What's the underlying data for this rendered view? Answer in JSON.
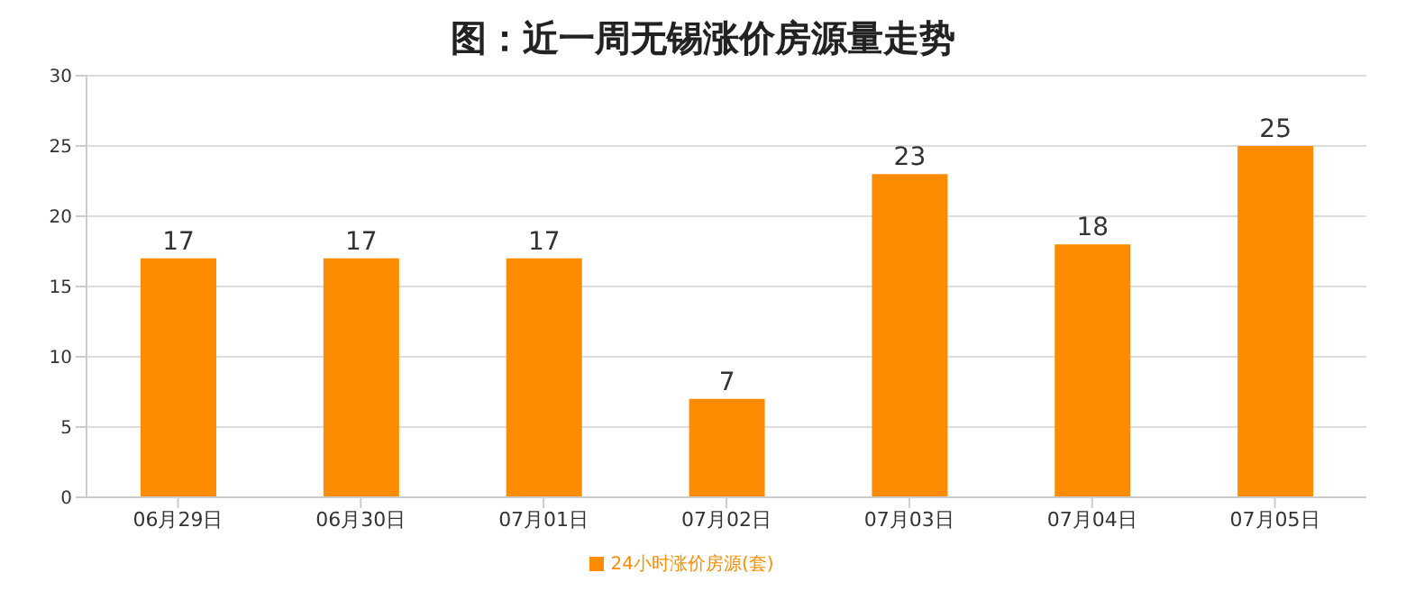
{
  "chart_data": {
    "type": "bar",
    "title": "图：近一周无锡涨价房源量走势",
    "categories": [
      "06月29日",
      "06月30日",
      "07月01日",
      "07月02日",
      "07月03日",
      "07月04日",
      "07月05日"
    ],
    "series": [
      {
        "name": "24小时涨价房源(套)",
        "color": "#ff8c00",
        "values": [
          17,
          17,
          17,
          7,
          23,
          18,
          25
        ]
      }
    ],
    "ylim": [
      0,
      30
    ],
    "yticks": [
      0,
      5,
      10,
      15,
      20,
      25,
      30
    ],
    "grid": "y",
    "legend": "bottom",
    "data_labels": true
  }
}
